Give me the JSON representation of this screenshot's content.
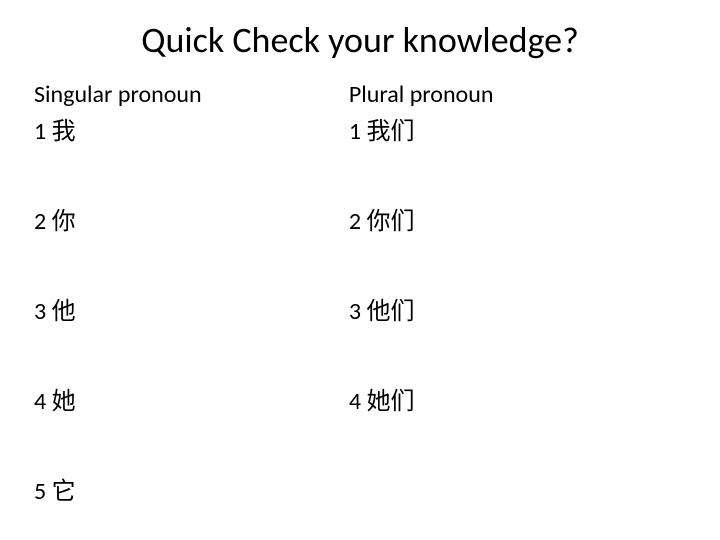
{
  "title": "Quick Check your knowledge?",
  "left": {
    "header": "Singular pronoun",
    "items": [
      "1 我",
      "2 你",
      "3 他",
      "4 她",
      "5 它"
    ]
  },
  "right": {
    "header": "Plural pronoun",
    "items": [
      "1 我们",
      "2 你们",
      "3 他们",
      "4 她们"
    ]
  }
}
